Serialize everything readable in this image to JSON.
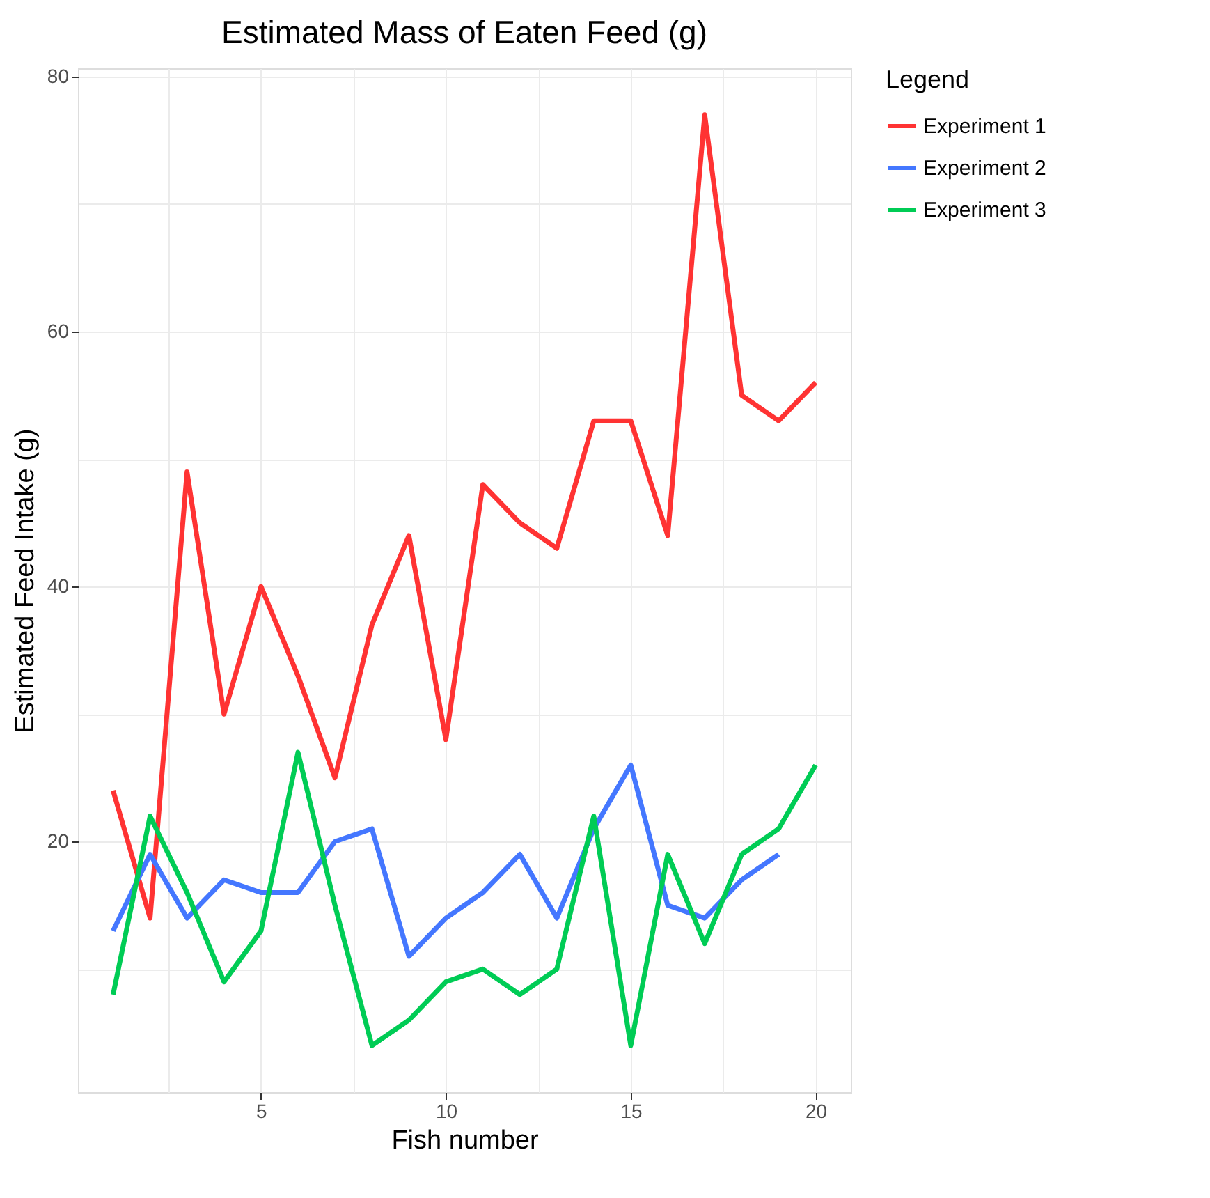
{
  "chart_data": {
    "type": "line",
    "title": "Estimated Mass of Eaten Feed (g)",
    "xlabel": "Fish number",
    "ylabel": "Estimated Feed Intake (g)",
    "legend_title": "Legend",
    "legend": "right",
    "grid": true,
    "line_style": "solid",
    "x": [
      1,
      2,
      3,
      4,
      5,
      6,
      7,
      8,
      9,
      10,
      11,
      12,
      13,
      14,
      15,
      16,
      17,
      18,
      19,
      20
    ],
    "xlim": [
      0.05,
      20.95
    ],
    "xticks": [
      {
        "value": 2.5,
        "label": null
      },
      5,
      {
        "value": 7.5,
        "label": null
      },
      10,
      {
        "value": 12.5,
        "label": null
      },
      15,
      {
        "value": 17.5,
        "label": null
      },
      20
    ],
    "ylim": [
      0.35,
      80.65
    ],
    "yticks": [
      {
        "value": 10,
        "label": null
      },
      20,
      {
        "value": 30,
        "label": null
      },
      40,
      {
        "value": 50,
        "label": null
      },
      60,
      {
        "value": 70,
        "label": null
      },
      80
    ],
    "series": [
      {
        "name": "Experiment 1",
        "color": "#ff3333",
        "values": [
          24,
          14,
          49,
          30,
          40,
          33,
          25,
          37,
          44,
          28,
          48,
          45,
          43,
          53,
          53,
          44,
          77,
          55,
          53,
          56
        ]
      },
      {
        "name": "Experiment 2",
        "color": "#4477ff",
        "values": [
          13,
          19,
          14,
          17,
          16,
          16,
          20,
          21,
          11,
          14,
          16,
          19,
          14,
          21,
          26,
          15,
          14,
          17,
          19,
          null
        ]
      },
      {
        "name": "Experiment 3",
        "color": "#00cc55",
        "values": [
          8,
          22,
          16,
          9,
          13,
          27,
          15,
          4,
          6,
          9,
          10,
          8,
          10,
          22,
          4,
          19,
          12,
          19,
          21,
          26
        ]
      }
    ]
  }
}
